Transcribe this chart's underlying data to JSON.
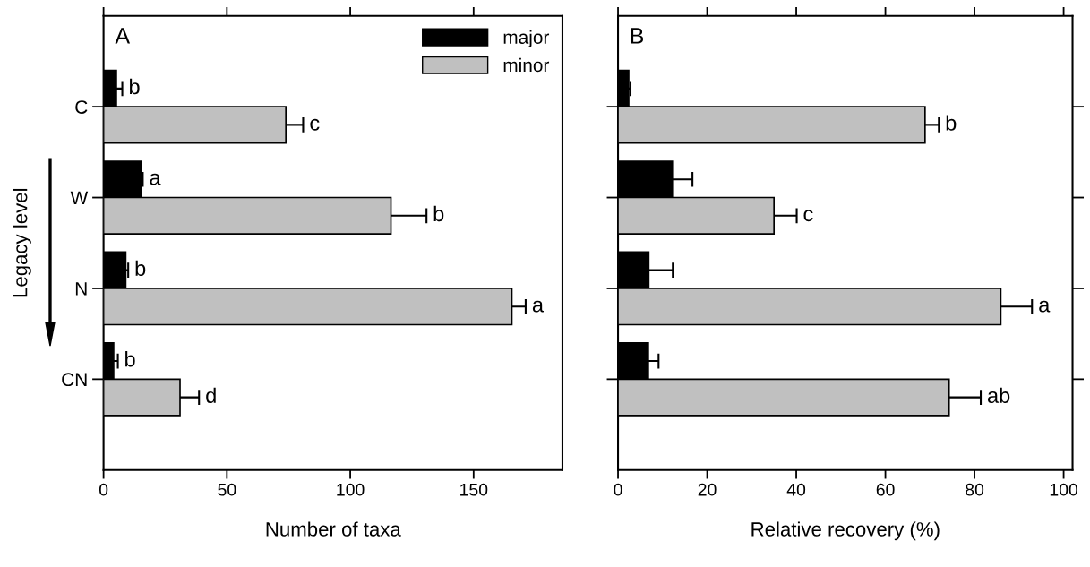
{
  "chart_data": [
    {
      "type": "bar",
      "orientation": "horizontal",
      "title": "A",
      "xlabel": "Number of taxa",
      "ylabel": "Legacy level",
      "categories": [
        "C",
        "W",
        "N",
        "CN"
      ],
      "series": [
        {
          "name": "major",
          "color": "#000000",
          "values": [
            5.2,
            15.1,
            9.0,
            4.1
          ],
          "errors": [
            2.4,
            0.8,
            1.0,
            1.7
          ],
          "value_labels": [
            "b",
            "a",
            "b",
            "b"
          ]
        },
        {
          "name": "minor",
          "color": "#c0c0c0",
          "values": [
            73.9,
            116.5,
            165.5,
            31.0
          ],
          "errors": [
            7.0,
            14.4,
            5.6,
            7.7
          ],
          "value_labels": [
            "c",
            "b",
            "a",
            "d"
          ]
        }
      ],
      "xlim": [
        0,
        186
      ],
      "xticks": [
        0,
        50,
        100,
        150
      ],
      "legend": "top right",
      "grid": false
    },
    {
      "type": "bar",
      "orientation": "horizontal",
      "title": "B",
      "xlabel": "Relative recovery (%)",
      "categories": [
        null,
        null,
        null,
        null
      ],
      "series": [
        {
          "color": "#000000",
          "values": [
            2.4,
            12.2,
            6.9,
            6.8
          ],
          "errors": [
            0.4,
            4.5,
            5.4,
            2.3
          ]
        },
        {
          "color": "#c0c0c0",
          "values": [
            68.9,
            35.0,
            85.9,
            74.3
          ],
          "errors": [
            3.1,
            5.1,
            7.0,
            7.1
          ],
          "value_labels": [
            "b",
            "c",
            "a",
            "ab"
          ]
        }
      ],
      "xlim": [
        0,
        102
      ],
      "xticks": [
        0,
        20,
        40,
        60,
        80,
        100
      ],
      "tick_labels": "x",
      "grid": false
    }
  ]
}
